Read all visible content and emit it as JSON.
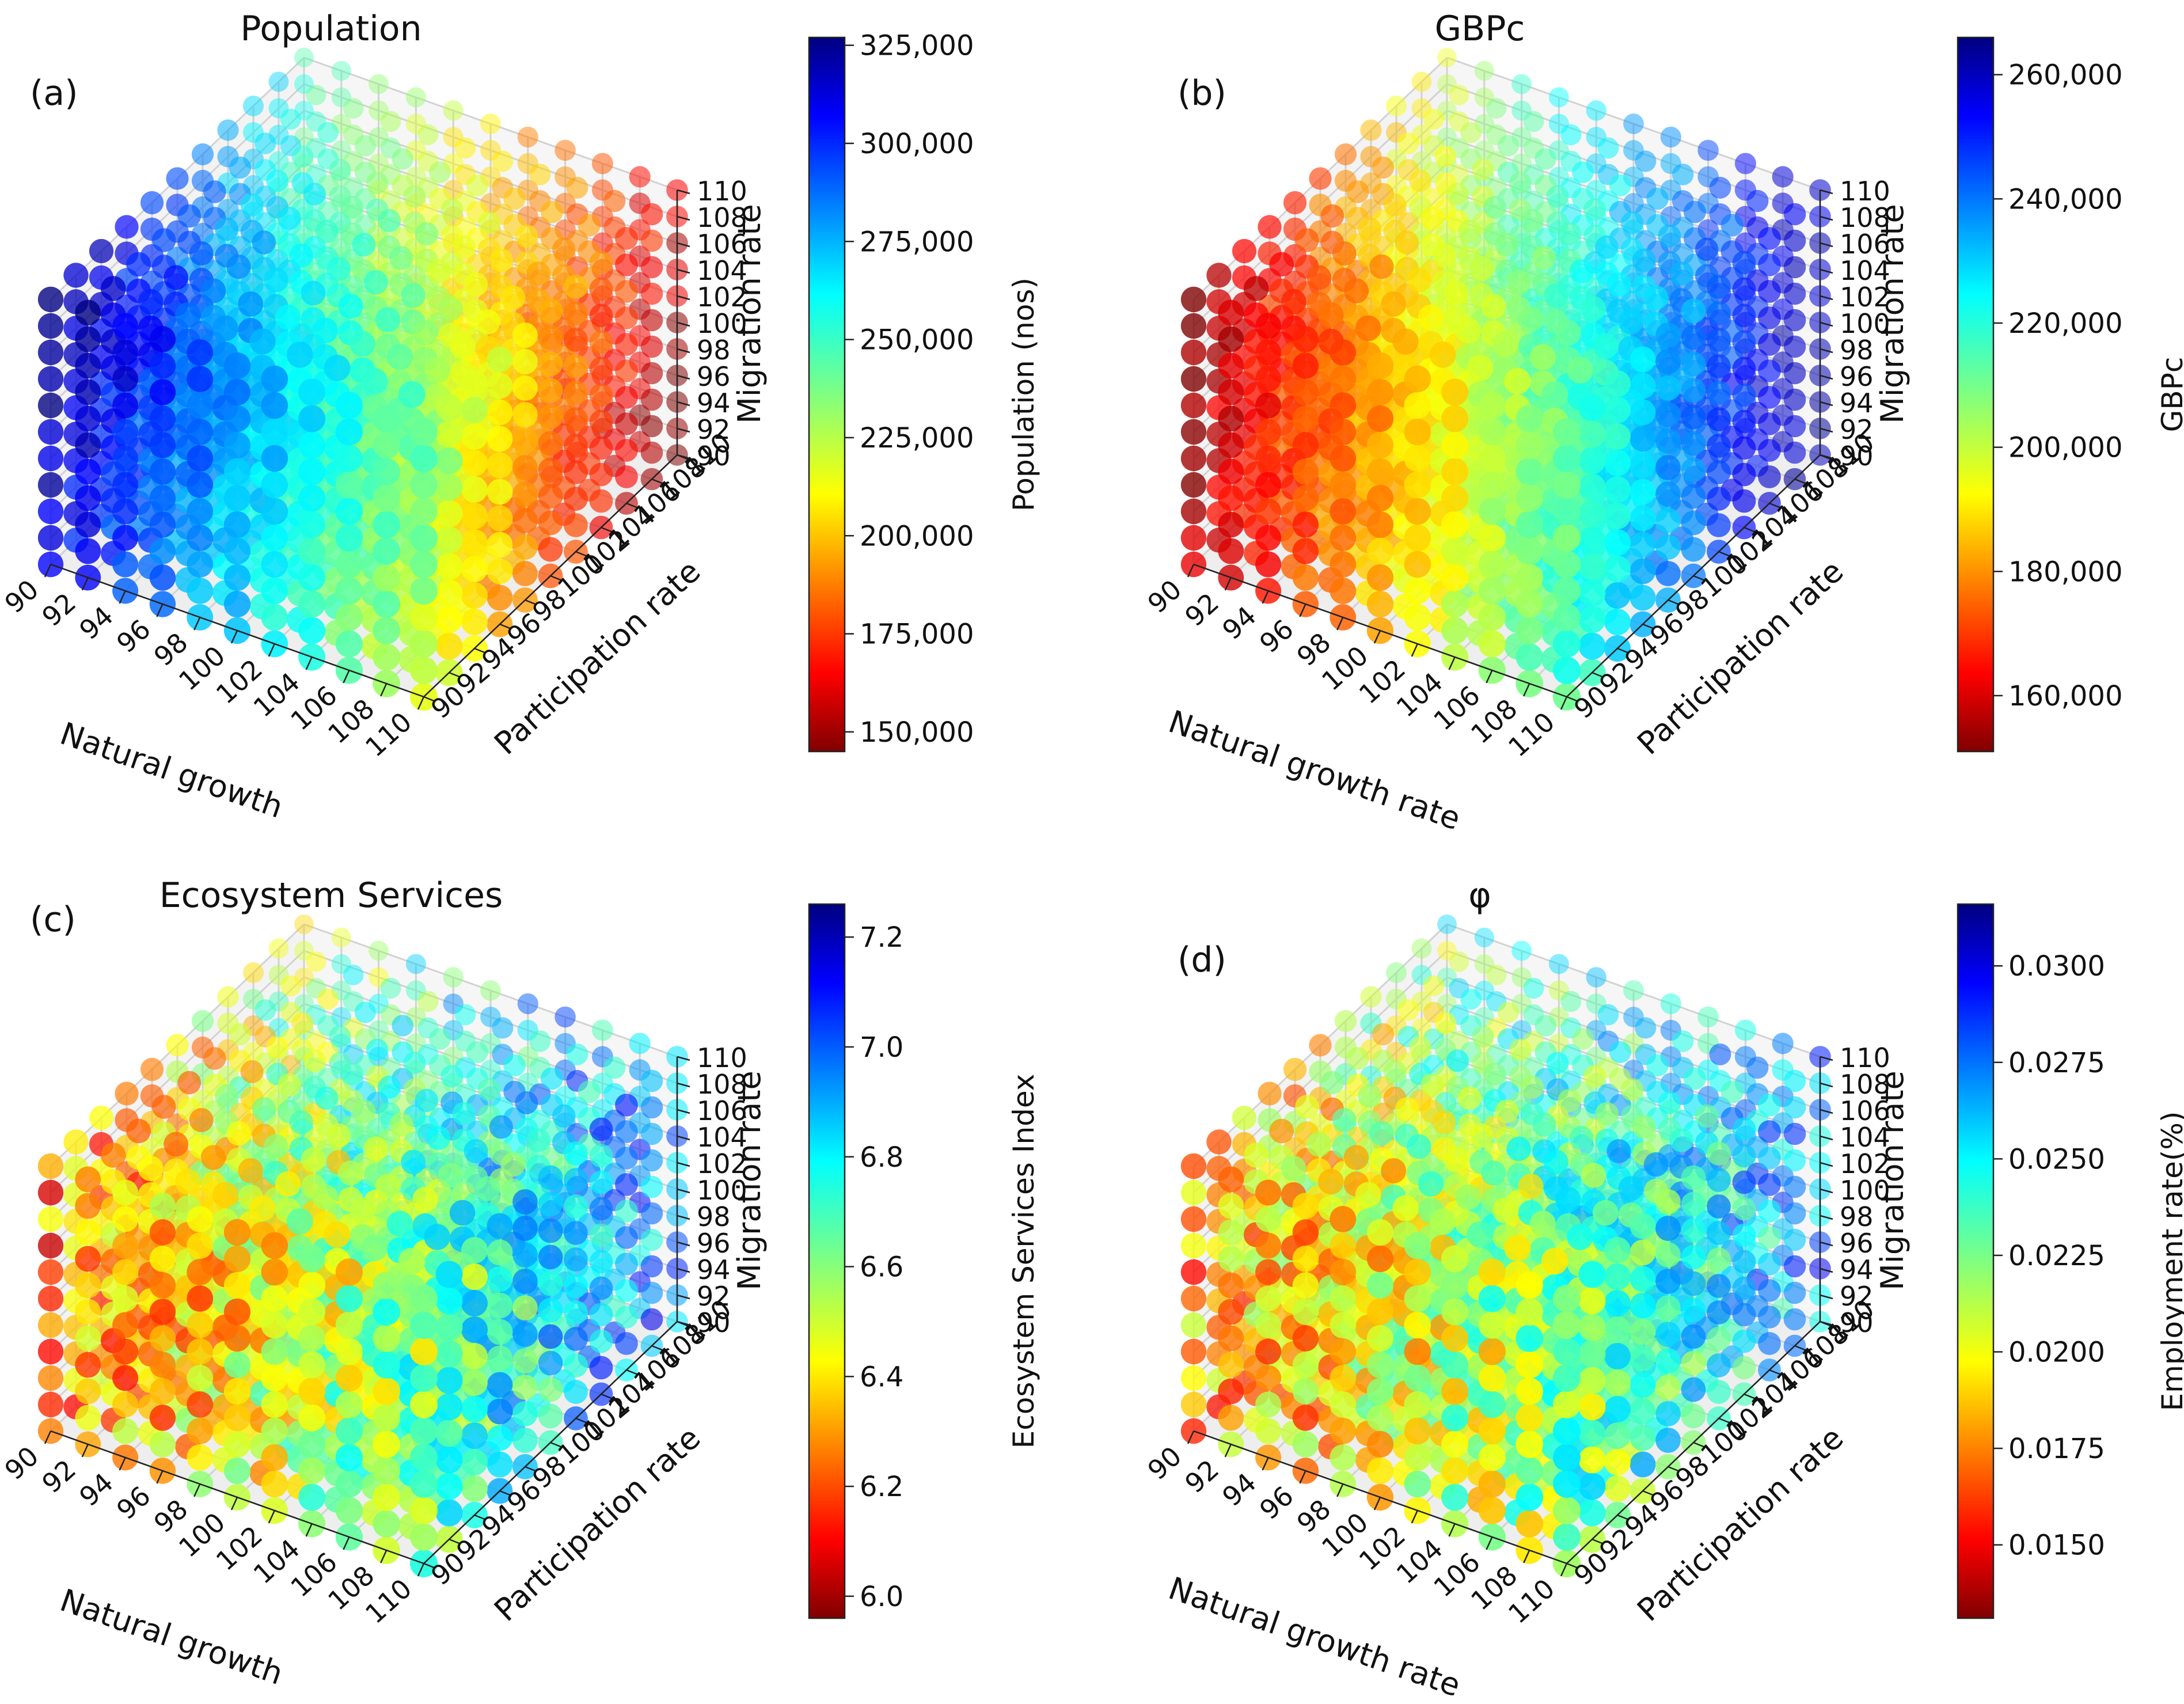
{
  "chart_data": [
    {
      "type": "scatter",
      "panel_label": "(a)",
      "title": "Population",
      "xlabel": "Natural growth",
      "ylabel": "Participation rate",
      "zlabel": "Migration rate",
      "x_ticks": [
        "90",
        "92",
        "94",
        "96",
        "98",
        "100",
        "102",
        "104",
        "106",
        "108",
        "110"
      ],
      "y_ticks": [
        "90",
        "92",
        "94",
        "96",
        "98",
        "100",
        "102",
        "104",
        "106",
        "108",
        "110"
      ],
      "z_ticks": [
        "90",
        "92",
        "94",
        "96",
        "98",
        "100",
        "102",
        "104",
        "106",
        "108",
        "110"
      ],
      "xlim": [
        90,
        110
      ],
      "ylim": [
        90,
        110
      ],
      "zlim": [
        90,
        110
      ],
      "grid": true,
      "colormap": "jet",
      "colorbar": {
        "label": "Population (nos)",
        "min": 145000,
        "max": 327000,
        "ticks": [
          150000,
          175000,
          200000,
          225000,
          250000,
          275000,
          300000,
          325000
        ],
        "tick_labels": [
          "150,000",
          "175,000",
          "200,000",
          "225,000",
          "250,000",
          "275,000",
          "300,000",
          "325,000"
        ]
      },
      "color_trend": {
        "x": 0.48,
        "y": 0.42,
        "z": -0.1,
        "noise": 0.05
      }
    },
    {
      "type": "scatter",
      "panel_label": "(b)",
      "title": "GBPc",
      "xlabel": "Natural growth rate",
      "ylabel": "Participation rate",
      "zlabel": "Migration rate",
      "x_ticks": [
        "90",
        "92",
        "94",
        "96",
        "98",
        "100",
        "102",
        "104",
        "106",
        "108",
        "110"
      ],
      "y_ticks": [
        "90",
        "92",
        "94",
        "96",
        "98",
        "100",
        "102",
        "104",
        "106",
        "108",
        "110"
      ],
      "z_ticks": [
        "90",
        "92",
        "94",
        "96",
        "98",
        "100",
        "102",
        "104",
        "106",
        "108",
        "110"
      ],
      "xlim": [
        90,
        110
      ],
      "ylim": [
        90,
        110
      ],
      "zlim": [
        90,
        110
      ],
      "grid": true,
      "colormap": "jet",
      "colorbar": {
        "label": "GBPc",
        "min": 151000,
        "max": 266000,
        "ticks": [
          160000,
          180000,
          200000,
          220000,
          240000,
          260000
        ],
        "tick_labels": [
          "160,000",
          "180,000",
          "200,000",
          "220,000",
          "240,000",
          "260,000"
        ]
      },
      "color_trend": {
        "x": -0.5,
        "y": -0.42,
        "z": 0.05,
        "noise": 0.05
      }
    },
    {
      "type": "scatter",
      "panel_label": "(c)",
      "title": "Ecosystem Services",
      "xlabel": "Natural growth",
      "ylabel": "Participation rate",
      "zlabel": "Migration rate",
      "x_ticks": [
        "90",
        "92",
        "94",
        "96",
        "98",
        "100",
        "102",
        "104",
        "106",
        "108",
        "110"
      ],
      "y_ticks": [
        "90",
        "92",
        "94",
        "96",
        "98",
        "100",
        "102",
        "104",
        "106",
        "108",
        "110"
      ],
      "z_ticks": [
        "90",
        "92",
        "94",
        "96",
        "98",
        "100",
        "102",
        "104",
        "106",
        "108",
        "110"
      ],
      "xlim": [
        90,
        110
      ],
      "ylim": [
        90,
        110
      ],
      "zlim": [
        90,
        110
      ],
      "grid": true,
      "colormap": "jet",
      "colorbar": {
        "label": "Ecosystem Services Index",
        "min": 5.96,
        "max": 7.26,
        "ticks": [
          6.0,
          6.2,
          6.4,
          6.6,
          6.8,
          7.0,
          7.2
        ],
        "tick_labels": [
          "6.0",
          "6.2",
          "6.4",
          "6.6",
          "6.8",
          "7.0",
          "7.2"
        ]
      },
      "color_trend": {
        "x": -0.28,
        "y": -0.26,
        "z": 0.02,
        "noise": 0.16
      }
    },
    {
      "type": "scatter",
      "panel_label": "(d)",
      "title": "φ",
      "xlabel": "Natural growth rate",
      "ylabel": "Participation rate",
      "zlabel": "Migration rate",
      "x_ticks": [
        "90",
        "92",
        "94",
        "96",
        "98",
        "100",
        "102",
        "104",
        "106",
        "108",
        "110"
      ],
      "y_ticks": [
        "90",
        "92",
        "94",
        "96",
        "98",
        "100",
        "102",
        "104",
        "106",
        "108",
        "110"
      ],
      "z_ticks": [
        "90",
        "92",
        "94",
        "96",
        "98",
        "100",
        "102",
        "104",
        "106",
        "108",
        "110"
      ],
      "xlim": [
        90,
        110
      ],
      "ylim": [
        90,
        110
      ],
      "zlim": [
        90,
        110
      ],
      "grid": true,
      "colormap": "jet",
      "colorbar": {
        "label": "Employment rate(%)",
        "min": 0.0131,
        "max": 0.0316,
        "ticks": [
          0.015,
          0.0175,
          0.02,
          0.0225,
          0.025,
          0.0275,
          0.03
        ],
        "tick_labels": [
          "0.0150",
          "0.0175",
          "0.0200",
          "0.0225",
          "0.0250",
          "0.0275",
          "0.0300"
        ]
      },
      "color_trend": {
        "x": -0.22,
        "y": -0.24,
        "z": 0.0,
        "noise": 0.16
      }
    }
  ]
}
